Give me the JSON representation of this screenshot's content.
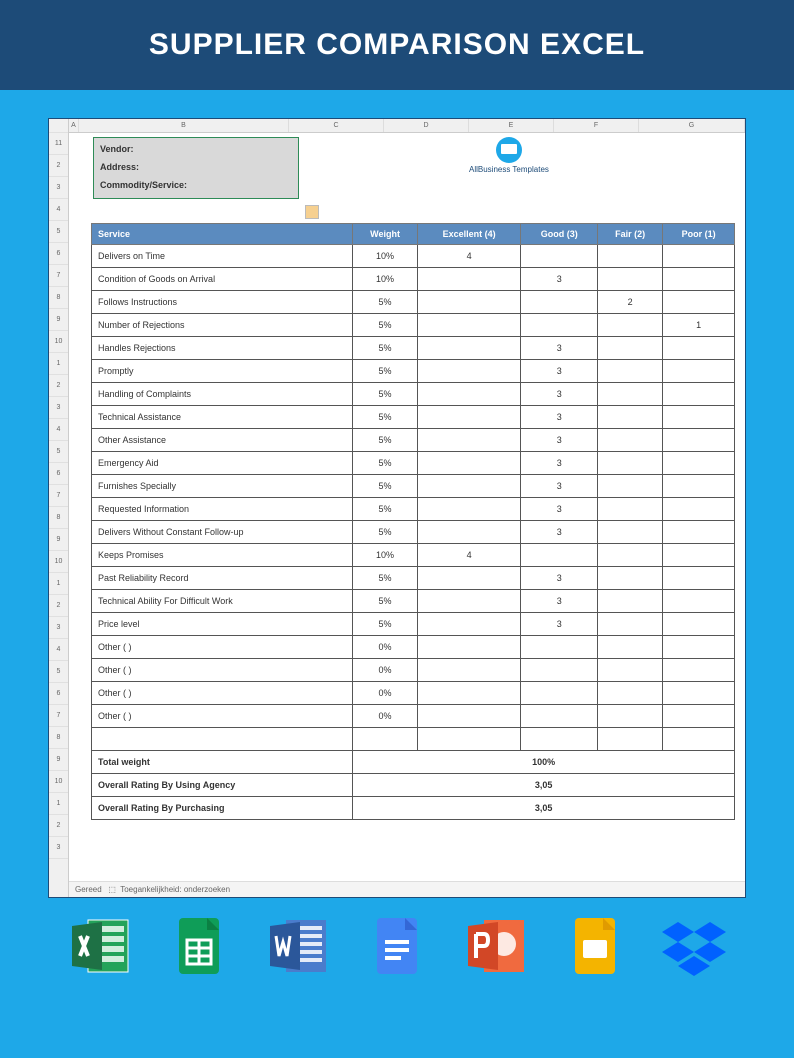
{
  "banner": {
    "title": "SUPPLIER COMPARISON EXCEL"
  },
  "colors": {
    "page_bg": "#1ea8e8",
    "banner_bg": "#1d4b78",
    "banner_text": "#ffffff",
    "table_header_bg": "#5b8bbf",
    "table_header_text": "#ffffff",
    "border": "#555555",
    "vendor_bg": "#d9d9d9"
  },
  "spreadsheet": {
    "columns": [
      "A",
      "B",
      "C",
      "D",
      "E",
      "F",
      "G"
    ],
    "row_numbers": [
      "11",
      "2",
      "3",
      "4",
      "5",
      "6",
      "7",
      "8",
      "9",
      "10",
      "1",
      "2",
      "3",
      "4",
      "5",
      "6",
      "7",
      "8",
      "9",
      "10",
      "1",
      "2",
      "3",
      "4",
      "5",
      "6",
      "7",
      "8",
      "9",
      "10",
      "1",
      "2",
      "3"
    ],
    "vendor_box": {
      "vendor": "Vendor:",
      "address": "Address:",
      "commodity": "Commodity/Service:"
    },
    "logo_text": "AllBusiness Templates",
    "table": {
      "headers": [
        "Service",
        "Weight",
        "Excellent (4)",
        "Good (3)",
        "Fair (2)",
        "Poor (1)"
      ],
      "rows": [
        {
          "service": "Delivers on Time",
          "weight": "10%",
          "e": "4",
          "g": "",
          "f": "",
          "p": ""
        },
        {
          "service": "Condition of Goods on Arrival",
          "weight": "10%",
          "e": "",
          "g": "3",
          "f": "",
          "p": ""
        },
        {
          "service": "Follows Instructions",
          "weight": "5%",
          "e": "",
          "g": "",
          "f": "2",
          "p": ""
        },
        {
          "service": "Number of Rejections",
          "weight": "5%",
          "e": "",
          "g": "",
          "f": "",
          "p": "1"
        },
        {
          "service": "Handles Rejections",
          "weight": "5%",
          "e": "",
          "g": "3",
          "f": "",
          "p": ""
        },
        {
          "service": "Promptly",
          "weight": "5%",
          "e": "",
          "g": "3",
          "f": "",
          "p": ""
        },
        {
          "service": "Handling of Complaints",
          "weight": "5%",
          "e": "",
          "g": "3",
          "f": "",
          "p": ""
        },
        {
          "service": "Technical Assistance",
          "weight": "5%",
          "e": "",
          "g": "3",
          "f": "",
          "p": ""
        },
        {
          "service": "Other Assistance",
          "weight": "5%",
          "e": "",
          "g": "3",
          "f": "",
          "p": ""
        },
        {
          "service": "Emergency Aid",
          "weight": "5%",
          "e": "",
          "g": "3",
          "f": "",
          "p": ""
        },
        {
          "service": "Furnishes Specially",
          "weight": "5%",
          "e": "",
          "g": "3",
          "f": "",
          "p": ""
        },
        {
          "service": "Requested Information",
          "weight": "5%",
          "e": "",
          "g": "3",
          "f": "",
          "p": ""
        },
        {
          "service": "Delivers Without Constant Follow-up",
          "weight": "5%",
          "e": "",
          "g": "3",
          "f": "",
          "p": ""
        },
        {
          "service": "Keeps Promises",
          "weight": "10%",
          "e": "4",
          "g": "",
          "f": "",
          "p": ""
        },
        {
          "service": "Past Reliability Record",
          "weight": "5%",
          "e": "",
          "g": "3",
          "f": "",
          "p": ""
        },
        {
          "service": "Technical Ability For Difficult Work",
          "weight": "5%",
          "e": "",
          "g": "3",
          "f": "",
          "p": ""
        },
        {
          "service": "Price level",
          "weight": "5%",
          "e": "",
          "g": "3",
          "f": "",
          "p": ""
        },
        {
          "service": "Other ( )",
          "weight": "0%",
          "e": "",
          "g": "",
          "f": "",
          "p": ""
        },
        {
          "service": "Other ( )",
          "weight": "0%",
          "e": "",
          "g": "",
          "f": "",
          "p": ""
        },
        {
          "service": "Other ( )",
          "weight": "0%",
          "e": "",
          "g": "",
          "f": "",
          "p": ""
        },
        {
          "service": "Other ( )",
          "weight": "0%",
          "e": "",
          "g": "",
          "f": "",
          "p": ""
        },
        {
          "service": "",
          "weight": "",
          "e": "",
          "g": "",
          "f": "",
          "p": ""
        }
      ],
      "summary": [
        {
          "label": "Total weight",
          "value": "100%"
        },
        {
          "label": "Overall Rating By Using Agency",
          "value": "3,05"
        },
        {
          "label": "Overall Rating By Purchasing",
          "value": "3,05"
        }
      ]
    },
    "statusbar": {
      "ready": "Gereed",
      "access": "Toegankelijkheid: onderzoeken"
    }
  },
  "apps": {
    "excel": {
      "fill": "#1e7145",
      "accent": "#24a35a"
    },
    "sheets": {
      "fill": "#0f9d58"
    },
    "word": {
      "fill": "#2b579a",
      "accent": "#4a7ccc"
    },
    "docs": {
      "fill": "#4285f4"
    },
    "ppt": {
      "fill": "#d24726",
      "accent": "#f06a3f"
    },
    "slides": {
      "fill": "#f4b400"
    },
    "dropbox": {
      "fill": "#0061ff"
    }
  }
}
